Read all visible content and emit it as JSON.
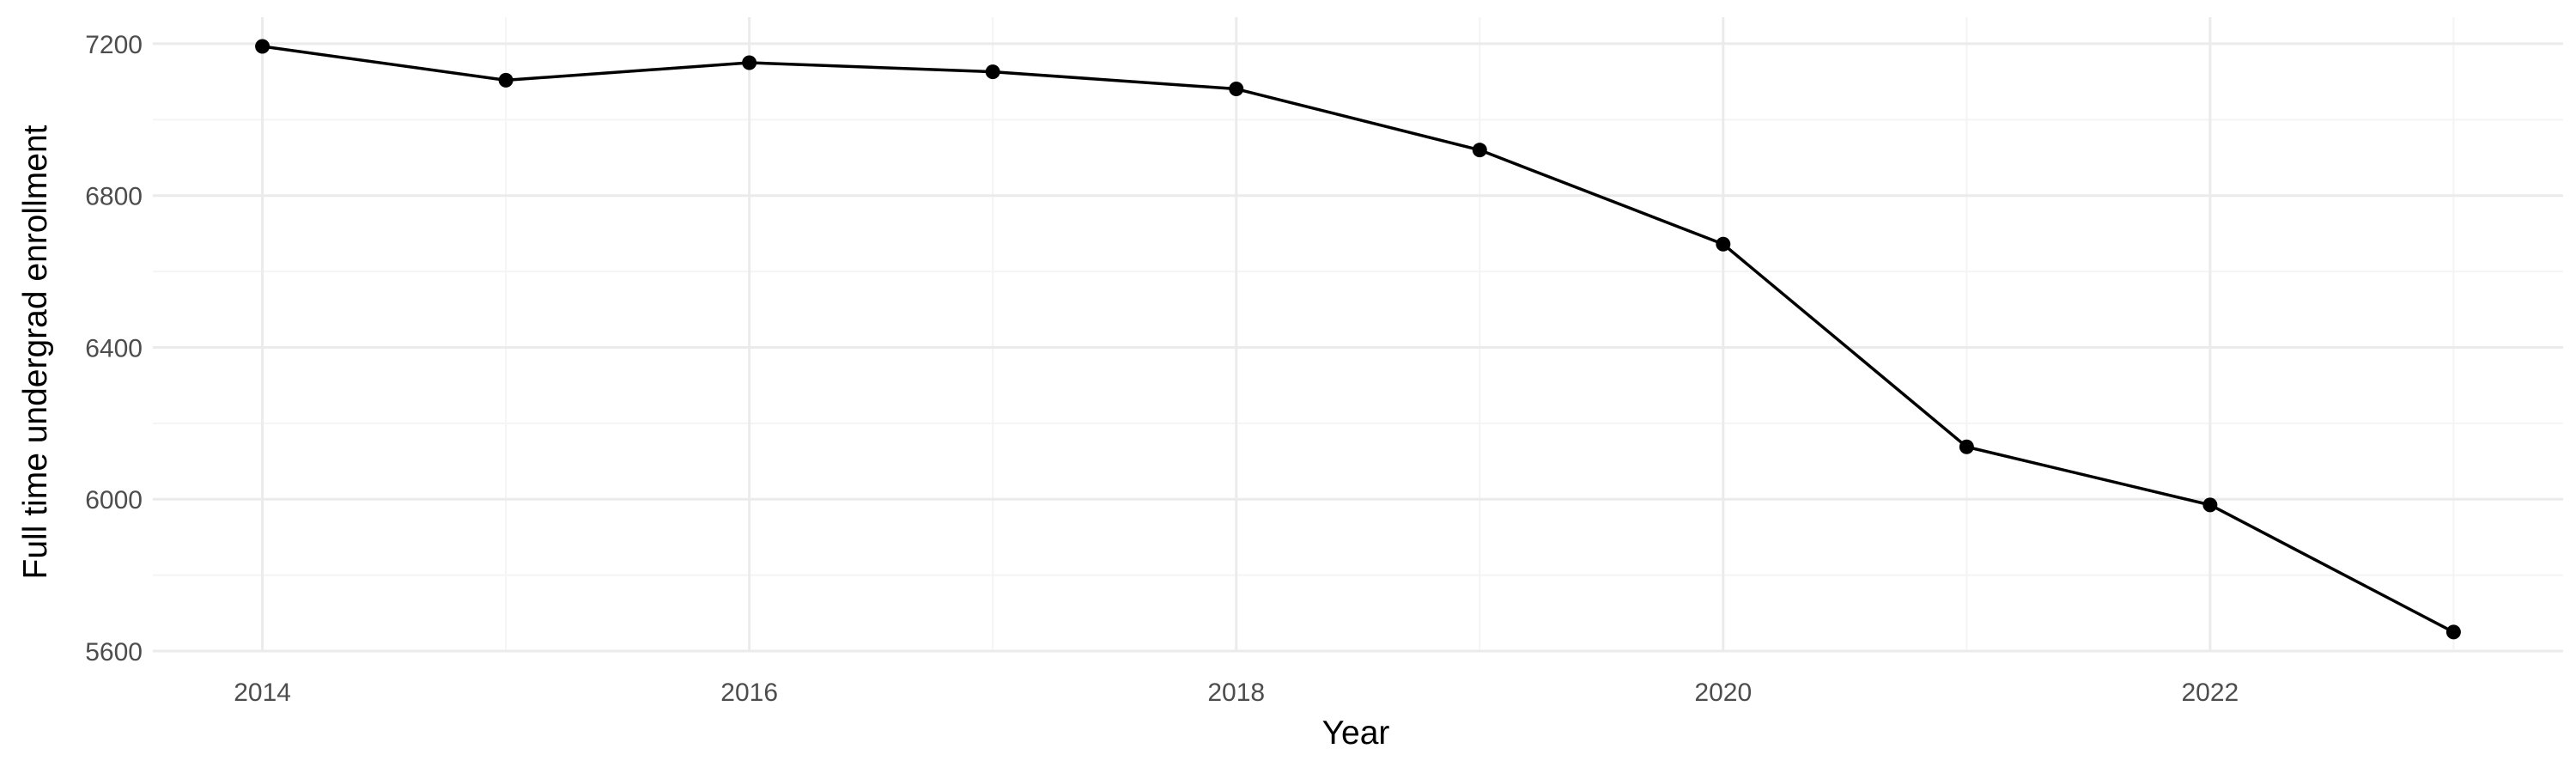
{
  "chart_data": {
    "type": "line",
    "title": "",
    "xlabel": "Year",
    "ylabel": "Full time undergrad enrollment",
    "x": [
      2014,
      2015,
      2016,
      2017,
      2018,
      2019,
      2020,
      2021,
      2022,
      2023
    ],
    "series": [
      {
        "values": [
          7193,
          7104,
          7150,
          7126,
          7081,
          6920,
          6672,
          6138,
          5985,
          5650
        ]
      }
    ],
    "xlim": [
      2013.55,
      2023.45
    ],
    "ylim": [
      5600,
      7270
    ],
    "x_ticks": [
      2014,
      2016,
      2018,
      2020,
      2022
    ],
    "x_tick_labels": [
      "2014",
      "2016",
      "2018",
      "2020",
      "2022"
    ],
    "y_ticks": [
      5600,
      6000,
      6400,
      6800,
      7200
    ],
    "y_tick_labels": [
      "5600",
      "6000",
      "6400",
      "6800",
      "7200"
    ],
    "grid": true,
    "legend": "none",
    "colors": {
      "line": "#000000",
      "point": "#000000",
      "grid_major": "#ebebeb",
      "grid_minor": "#f4f4f4"
    }
  }
}
